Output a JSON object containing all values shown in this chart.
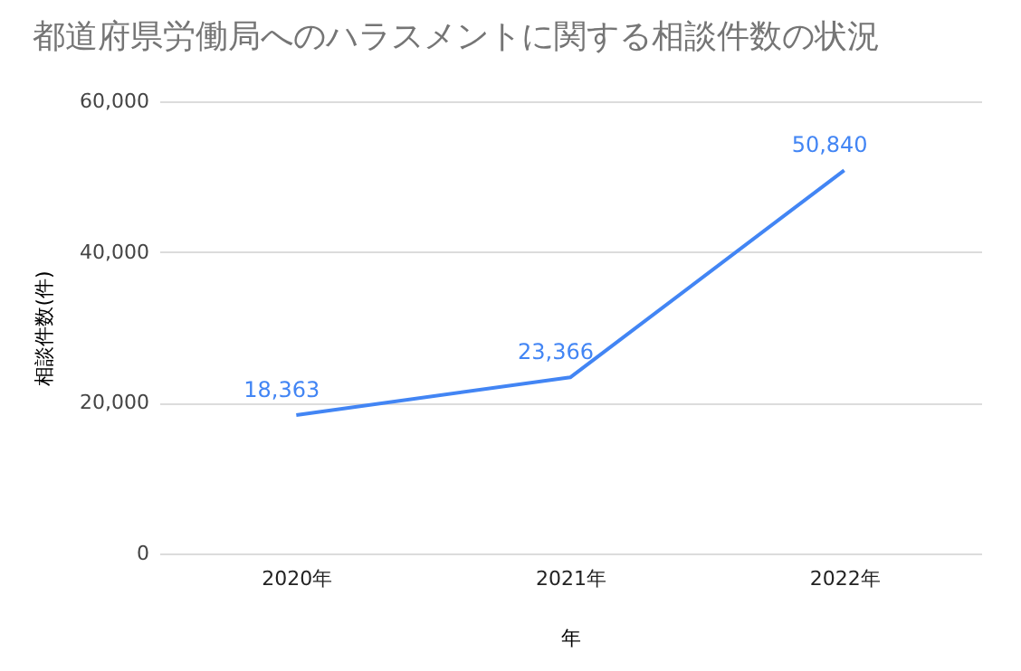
{
  "chart_data": {
    "type": "line",
    "title": "都道府県労働局へのハラスメントに関する相談件数の状況",
    "xlabel": "年",
    "ylabel": "相談件数(件)",
    "categories": [
      "2020年",
      "2021年",
      "2022年"
    ],
    "series": [
      {
        "color": "#4285f4",
        "values": [
          18363,
          23366,
          50840
        ],
        "value_labels": [
          "18,363",
          "23,366",
          "50,840"
        ]
      }
    ],
    "ylim": [
      0,
      60000
    ],
    "yticks": [
      0,
      {
        "value": 20000,
        "label": "20,000"
      },
      {
        "value": 40000,
        "label": "40,000"
      },
      {
        "value": 60000,
        "label": "60,000"
      }
    ],
    "grid": "y",
    "marker": "none",
    "legend": false
  }
}
